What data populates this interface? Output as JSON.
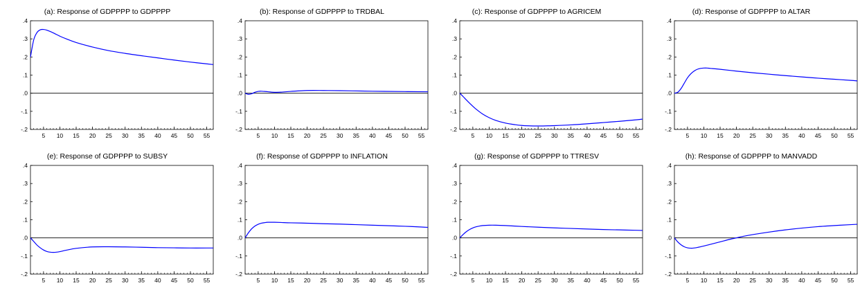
{
  "chart_data": [
    {
      "type": "line",
      "title": "(a): Response of GDPPPP to GDPPPP",
      "xlim": [
        1,
        57
      ],
      "ylim": [
        -0.2,
        0.4
      ],
      "xticks": [
        5,
        10,
        15,
        20,
        25,
        30,
        35,
        40,
        45,
        50,
        55
      ],
      "yticks": [
        {
          "value": 0.4,
          "label": ".4"
        },
        {
          "value": 0.3,
          "label": ".3"
        },
        {
          "value": 0.2,
          "label": ".2"
        },
        {
          "value": 0.1,
          "label": ".1"
        },
        {
          "value": 0.0,
          "label": ".0"
        },
        {
          "value": -0.1,
          "label": "-.1"
        },
        {
          "value": -0.2,
          "label": "-.2"
        }
      ],
      "series": [
        {
          "color": "#0000ff",
          "x": [
            1,
            2,
            3,
            4,
            5,
            6,
            8,
            10,
            12,
            15,
            20,
            25,
            30,
            35,
            40,
            45,
            50,
            55,
            57
          ],
          "y": [
            0.2,
            0.295,
            0.335,
            0.35,
            0.352,
            0.348,
            0.333,
            0.315,
            0.3,
            0.28,
            0.255,
            0.235,
            0.22,
            0.207,
            0.195,
            0.183,
            0.172,
            0.162,
            0.158
          ]
        }
      ]
    },
    {
      "type": "line",
      "title": "(b): Response of GDPPPP to TRDBAL",
      "xlim": [
        1,
        57
      ],
      "ylim": [
        -0.2,
        0.4
      ],
      "xticks": [
        5,
        10,
        15,
        20,
        25,
        30,
        35,
        40,
        45,
        50,
        55
      ],
      "yticks": [
        {
          "value": 0.4,
          "label": ".4"
        },
        {
          "value": 0.3,
          "label": ".3"
        },
        {
          "value": 0.2,
          "label": ".2"
        },
        {
          "value": 0.1,
          "label": ".1"
        },
        {
          "value": 0.0,
          "label": ".0"
        },
        {
          "value": -0.1,
          "label": "-.1"
        },
        {
          "value": -0.2,
          "label": "-.2"
        }
      ],
      "series": [
        {
          "color": "#0000ff",
          "x": [
            1,
            2,
            3,
            4,
            5,
            6,
            8,
            10,
            12,
            15,
            20,
            25,
            30,
            40,
            50,
            57
          ],
          "y": [
            0.0,
            -0.006,
            -0.003,
            0.005,
            0.01,
            0.011,
            0.008,
            0.005,
            0.006,
            0.01,
            0.015,
            0.015,
            0.014,
            0.011,
            0.009,
            0.008
          ]
        }
      ]
    },
    {
      "type": "line",
      "title": "(c): Response of GDPPPP to AGRICEM",
      "xlim": [
        1,
        57
      ],
      "ylim": [
        -0.2,
        0.4
      ],
      "xticks": [
        5,
        10,
        15,
        20,
        25,
        30,
        35,
        40,
        45,
        50,
        55
      ],
      "yticks": [
        {
          "value": 0.4,
          "label": ".4"
        },
        {
          "value": 0.3,
          "label": ".3"
        },
        {
          "value": 0.2,
          "label": ".2"
        },
        {
          "value": 0.1,
          "label": ".1"
        },
        {
          "value": 0.0,
          "label": ".0"
        },
        {
          "value": -0.1,
          "label": "-.1"
        },
        {
          "value": -0.2,
          "label": "-.2"
        }
      ],
      "series": [
        {
          "color": "#0000ff",
          "x": [
            1,
            2,
            3,
            4,
            5,
            6,
            8,
            10,
            12,
            15,
            18,
            20,
            22,
            25,
            28,
            30,
            35,
            40,
            45,
            50,
            55,
            57
          ],
          "y": [
            0.0,
            -0.018,
            -0.037,
            -0.055,
            -0.072,
            -0.088,
            -0.115,
            -0.135,
            -0.15,
            -0.165,
            -0.174,
            -0.178,
            -0.18,
            -0.181,
            -0.18,
            -0.179,
            -0.175,
            -0.169,
            -0.162,
            -0.155,
            -0.147,
            -0.143
          ]
        }
      ]
    },
    {
      "type": "line",
      "title": "(d): Response of GDPPPP to ALTAR",
      "xlim": [
        1,
        57
      ],
      "ylim": [
        -0.2,
        0.4
      ],
      "xticks": [
        5,
        10,
        15,
        20,
        25,
        30,
        35,
        40,
        45,
        50,
        55
      ],
      "yticks": [
        {
          "value": 0.4,
          "label": ".4"
        },
        {
          "value": 0.3,
          "label": ".3"
        },
        {
          "value": 0.2,
          "label": ".2"
        },
        {
          "value": 0.1,
          "label": ".1"
        },
        {
          "value": 0.0,
          "label": ".0"
        },
        {
          "value": -0.1,
          "label": "-.1"
        },
        {
          "value": -0.2,
          "label": "-.2"
        }
      ],
      "series": [
        {
          "color": "#0000ff",
          "x": [
            1,
            2,
            3,
            4,
            5,
            6,
            7,
            8,
            9,
            10,
            11,
            12,
            15,
            20,
            25,
            30,
            35,
            40,
            45,
            50,
            55,
            57
          ],
          "y": [
            0.0,
            0.005,
            0.025,
            0.055,
            0.085,
            0.107,
            0.122,
            0.132,
            0.137,
            0.139,
            0.139,
            0.137,
            0.132,
            0.122,
            0.113,
            0.105,
            0.097,
            0.09,
            0.083,
            0.077,
            0.071,
            0.068
          ]
        }
      ]
    },
    {
      "type": "line",
      "title": "(e): Response of GDPPPP to SUBSY",
      "xlim": [
        1,
        57
      ],
      "ylim": [
        -0.2,
        0.4
      ],
      "xticks": [
        5,
        10,
        15,
        20,
        25,
        30,
        35,
        40,
        45,
        50,
        55
      ],
      "yticks": [
        {
          "value": 0.4,
          "label": ".4"
        },
        {
          "value": 0.3,
          "label": ".3"
        },
        {
          "value": 0.2,
          "label": ".2"
        },
        {
          "value": 0.1,
          "label": ".1"
        },
        {
          "value": 0.0,
          "label": ".0"
        },
        {
          "value": -0.1,
          "label": "-.1"
        },
        {
          "value": -0.2,
          "label": "-.2"
        }
      ],
      "series": [
        {
          "color": "#0000ff",
          "x": [
            1,
            2,
            3,
            4,
            5,
            6,
            7,
            8,
            9,
            10,
            12,
            15,
            20,
            25,
            30,
            35,
            40,
            45,
            50,
            55,
            57
          ],
          "y": [
            0.0,
            -0.02,
            -0.04,
            -0.055,
            -0.067,
            -0.075,
            -0.079,
            -0.08,
            -0.079,
            -0.076,
            -0.068,
            -0.058,
            -0.05,
            -0.049,
            -0.05,
            -0.052,
            -0.054,
            -0.055,
            -0.056,
            -0.056,
            -0.056
          ]
        }
      ]
    },
    {
      "type": "line",
      "title": "(f): Response of GDPPPP to INFLATION",
      "xlim": [
        1,
        57
      ],
      "ylim": [
        -0.2,
        0.4
      ],
      "xticks": [
        5,
        10,
        15,
        20,
        25,
        30,
        35,
        40,
        45,
        50,
        55
      ],
      "yticks": [
        {
          "value": 0.4,
          "label": ".4"
        },
        {
          "value": 0.3,
          "label": ".3"
        },
        {
          "value": 0.2,
          "label": ".2"
        },
        {
          "value": 0.1,
          "label": ".1"
        },
        {
          "value": 0.0,
          "label": ".0"
        },
        {
          "value": -0.1,
          "label": "-.1"
        },
        {
          "value": -0.2,
          "label": "-.2"
        }
      ],
      "series": [
        {
          "color": "#0000ff",
          "x": [
            1,
            2,
            3,
            4,
            5,
            6,
            7,
            8,
            9,
            10,
            12,
            15,
            20,
            25,
            30,
            35,
            40,
            45,
            50,
            55,
            57
          ],
          "y": [
            0.0,
            0.028,
            0.05,
            0.065,
            0.075,
            0.081,
            0.084,
            0.086,
            0.086,
            0.086,
            0.085,
            0.083,
            0.081,
            0.078,
            0.076,
            0.073,
            0.07,
            0.067,
            0.064,
            0.06,
            0.058
          ]
        }
      ]
    },
    {
      "type": "line",
      "title": "(g): Response of GDPPPP to TTRESV",
      "xlim": [
        1,
        57
      ],
      "ylim": [
        -0.2,
        0.4
      ],
      "xticks": [
        5,
        10,
        15,
        20,
        25,
        30,
        35,
        40,
        45,
        50,
        55
      ],
      "yticks": [
        {
          "value": 0.4,
          "label": ".4"
        },
        {
          "value": 0.3,
          "label": ".3"
        },
        {
          "value": 0.2,
          "label": ".2"
        },
        {
          "value": 0.1,
          "label": ".1"
        },
        {
          "value": 0.0,
          "label": ".0"
        },
        {
          "value": -0.1,
          "label": "-.1"
        },
        {
          "value": -0.2,
          "label": "-.2"
        }
      ],
      "series": [
        {
          "color": "#0000ff",
          "x": [
            1,
            2,
            3,
            4,
            5,
            6,
            7,
            8,
            10,
            12,
            15,
            20,
            25,
            30,
            35,
            40,
            45,
            50,
            55,
            57
          ],
          "y": [
            0.0,
            0.018,
            0.034,
            0.046,
            0.055,
            0.061,
            0.065,
            0.068,
            0.07,
            0.07,
            0.068,
            0.063,
            0.059,
            0.055,
            0.052,
            0.049,
            0.046,
            0.044,
            0.042,
            0.041
          ]
        }
      ]
    },
    {
      "type": "line",
      "title": "(h): Response of GDPPPP to MANVADD",
      "xlim": [
        1,
        57
      ],
      "ylim": [
        -0.2,
        0.4
      ],
      "xticks": [
        5,
        10,
        15,
        20,
        25,
        30,
        35,
        40,
        45,
        50,
        55
      ],
      "yticks": [
        {
          "value": 0.4,
          "label": ".4"
        },
        {
          "value": 0.3,
          "label": ".3"
        },
        {
          "value": 0.2,
          "label": ".2"
        },
        {
          "value": 0.1,
          "label": ".1"
        },
        {
          "value": 0.0,
          "label": ".0"
        },
        {
          "value": -0.1,
          "label": "-.1"
        },
        {
          "value": -0.2,
          "label": "-.2"
        }
      ],
      "series": [
        {
          "color": "#0000ff",
          "x": [
            1,
            2,
            3,
            4,
            5,
            6,
            7,
            8,
            10,
            12,
            15,
            18,
            20,
            22,
            25,
            30,
            35,
            40,
            45,
            50,
            55,
            57
          ],
          "y": [
            0.0,
            -0.022,
            -0.038,
            -0.049,
            -0.055,
            -0.057,
            -0.056,
            -0.053,
            -0.045,
            -0.036,
            -0.022,
            -0.008,
            0.0,
            0.008,
            0.018,
            0.032,
            0.044,
            0.054,
            0.062,
            0.068,
            0.073,
            0.075
          ]
        }
      ]
    }
  ]
}
